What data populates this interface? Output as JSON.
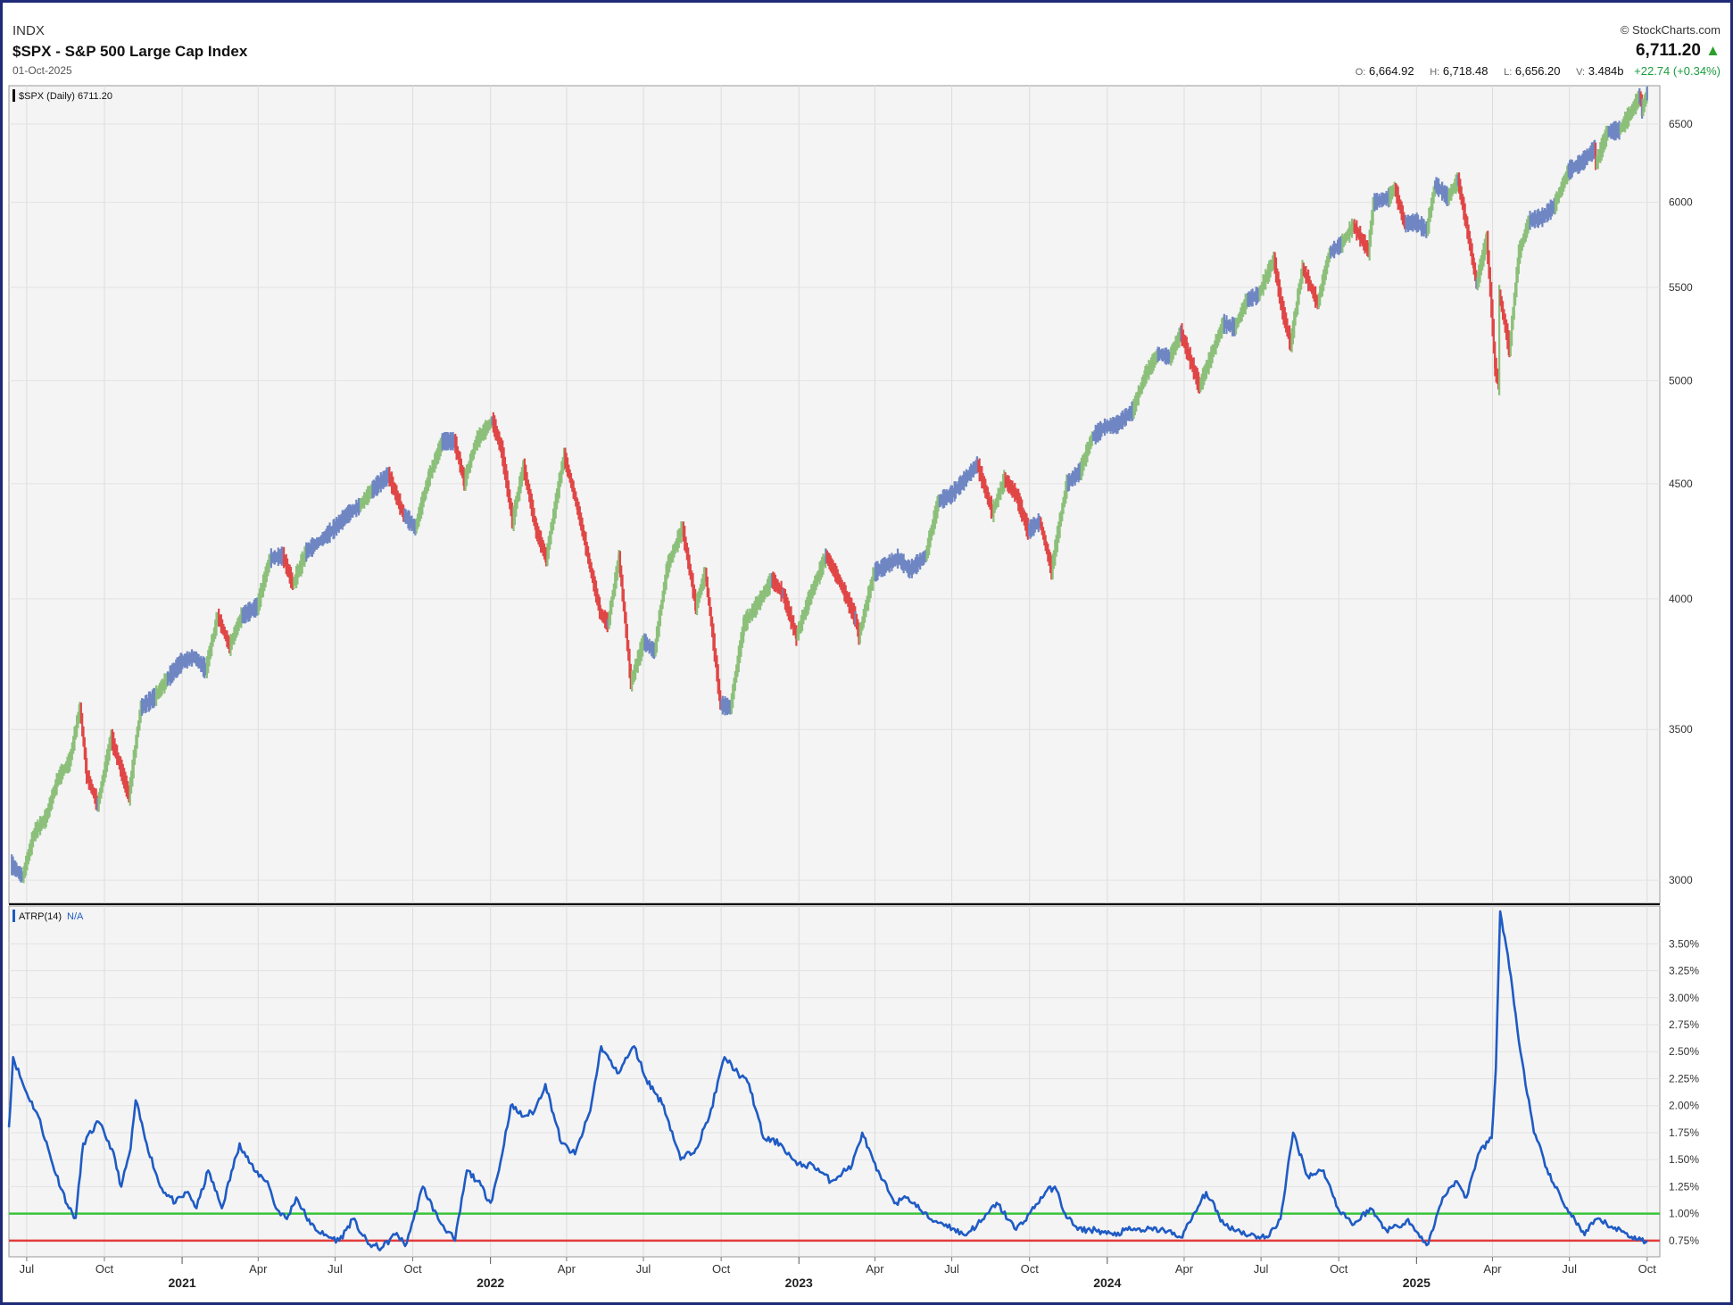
{
  "header": {
    "exchange": "INDX",
    "title": "$SPX - S&P 500 Large Cap Index",
    "date": "01-Oct-2025",
    "brand": "© StockCharts.com",
    "last": "6,711.20",
    "open_label": "O:",
    "open": "6,664.92",
    "high_label": "H:",
    "high": "6,718.48",
    "low_label": "L:",
    "low": "6,656.20",
    "volume_label": "V:",
    "volume": "3.484b",
    "change": "+22.74 (+0.34%)"
  },
  "colors": {
    "up": "#8cc07a",
    "down": "#e04646",
    "neutral": "#6f86c3",
    "atr_line": "#1f5bc4",
    "level_high": "#39c43a",
    "level_low": "#e33b3b",
    "frame": "#1f2a78",
    "panel_bg": "#f4f4f4"
  },
  "chart_data": [
    {
      "type": "line",
      "legend": "$SPX (Daily) 6711.20",
      "scale": "log",
      "ylim": [
        2930,
        6760
      ],
      "yticks": [
        3000,
        3500,
        4000,
        4500,
        5000,
        5500,
        6000,
        6500
      ],
      "x_range": [
        "2020-06-10",
        "2025-10-16"
      ],
      "month_ticks": [
        {
          "date": "2020-07-01",
          "label": "Jul"
        },
        {
          "date": "2020-10-01",
          "label": "Oct"
        },
        {
          "date": "2021-04-01",
          "label": "Apr"
        },
        {
          "date": "2021-07-01",
          "label": "Jul"
        },
        {
          "date": "2021-10-01",
          "label": "Oct"
        },
        {
          "date": "2022-04-01",
          "label": "Apr"
        },
        {
          "date": "2022-07-01",
          "label": "Jul"
        },
        {
          "date": "2022-10-01",
          "label": "Oct"
        },
        {
          "date": "2023-04-01",
          "label": "Apr"
        },
        {
          "date": "2023-07-01",
          "label": "Jul"
        },
        {
          "date": "2023-10-01",
          "label": "Oct"
        },
        {
          "date": "2024-04-01",
          "label": "Apr"
        },
        {
          "date": "2024-07-01",
          "label": "Jul"
        },
        {
          "date": "2024-10-01",
          "label": "Oct"
        },
        {
          "date": "2025-04-01",
          "label": "Apr"
        },
        {
          "date": "2025-07-01",
          "label": "Jul"
        },
        {
          "date": "2025-10-01",
          "label": "Oct"
        }
      ],
      "year_ticks": [
        {
          "date": "2021-01-01",
          "label": "2021"
        },
        {
          "date": "2022-01-01",
          "label": "2022"
        },
        {
          "date": "2023-01-01",
          "label": "2023"
        },
        {
          "date": "2024-01-01",
          "label": "2024"
        },
        {
          "date": "2025-01-01",
          "label": "2025"
        }
      ],
      "points": [
        [
          "2020-06-12",
          3050
        ],
        [
          "2020-06-26",
          3010
        ],
        [
          "2020-07-10",
          3150
        ],
        [
          "2020-07-24",
          3200
        ],
        [
          "2020-08-07",
          3330
        ],
        [
          "2020-08-21",
          3390
        ],
        [
          "2020-09-02",
          3580
        ],
        [
          "2020-09-10",
          3340
        ],
        [
          "2020-09-23",
          3240
        ],
        [
          "2020-10-09",
          3470
        ],
        [
          "2020-10-30",
          3270
        ],
        [
          "2020-11-13",
          3580
        ],
        [
          "2020-11-30",
          3620
        ],
        [
          "2020-12-15",
          3690
        ],
        [
          "2020-12-31",
          3750
        ],
        [
          "2021-01-15",
          3770
        ],
        [
          "2021-01-29",
          3720
        ],
        [
          "2021-02-12",
          3930
        ],
        [
          "2021-02-26",
          3810
        ],
        [
          "2021-03-12",
          3930
        ],
        [
          "2021-03-31",
          3970
        ],
        [
          "2021-04-15",
          4170
        ],
        [
          "2021-04-30",
          4180
        ],
        [
          "2021-05-12",
          4060
        ],
        [
          "2021-05-28",
          4200
        ],
        [
          "2021-06-15",
          4250
        ],
        [
          "2021-06-30",
          4300
        ],
        [
          "2021-07-15",
          4360
        ],
        [
          "2021-07-30",
          4400
        ],
        [
          "2021-08-13",
          4470
        ],
        [
          "2021-09-02",
          4540
        ],
        [
          "2021-09-20",
          4360
        ],
        [
          "2021-10-04",
          4300
        ],
        [
          "2021-10-20",
          4530
        ],
        [
          "2021-11-05",
          4700
        ],
        [
          "2021-11-19",
          4700
        ],
        [
          "2021-12-01",
          4510
        ],
        [
          "2021-12-15",
          4700
        ],
        [
          "2022-01-03",
          4800
        ],
        [
          "2022-01-14",
          4660
        ],
        [
          "2022-01-27",
          4330
        ],
        [
          "2022-02-09",
          4580
        ],
        [
          "2022-02-24",
          4290
        ],
        [
          "2022-03-08",
          4170
        ],
        [
          "2022-03-29",
          4630
        ],
        [
          "2022-04-14",
          4390
        ],
        [
          "2022-04-29",
          4130
        ],
        [
          "2022-05-11",
          3940
        ],
        [
          "2022-05-20",
          3900
        ],
        [
          "2022-06-02",
          4170
        ],
        [
          "2022-06-16",
          3670
        ],
        [
          "2022-07-01",
          3830
        ],
        [
          "2022-07-14",
          3790
        ],
        [
          "2022-07-29",
          4130
        ],
        [
          "2022-08-16",
          4300
        ],
        [
          "2022-09-01",
          3970
        ],
        [
          "2022-09-12",
          4110
        ],
        [
          "2022-09-30",
          3590
        ],
        [
          "2022-10-12",
          3580
        ],
        [
          "2022-10-28",
          3900
        ],
        [
          "2022-11-15",
          3990
        ],
        [
          "2022-11-30",
          4080
        ],
        [
          "2022-12-13",
          4020
        ],
        [
          "2022-12-29",
          3850
        ],
        [
          "2023-01-13",
          4000
        ],
        [
          "2023-02-02",
          4180
        ],
        [
          "2023-02-17",
          4080
        ],
        [
          "2023-03-09",
          3920
        ],
        [
          "2023-03-13",
          3850
        ],
        [
          "2023-03-31",
          4110
        ],
        [
          "2023-04-14",
          4140
        ],
        [
          "2023-04-28",
          4170
        ],
        [
          "2023-05-12",
          4120
        ],
        [
          "2023-05-31",
          4180
        ],
        [
          "2023-06-15",
          4420
        ],
        [
          "2023-06-30",
          4450
        ],
        [
          "2023-07-14",
          4510
        ],
        [
          "2023-07-31",
          4590
        ],
        [
          "2023-08-18",
          4370
        ],
        [
          "2023-09-01",
          4520
        ],
        [
          "2023-09-15",
          4450
        ],
        [
          "2023-09-29",
          4290
        ],
        [
          "2023-10-13",
          4330
        ],
        [
          "2023-10-27",
          4120
        ],
        [
          "2023-11-14",
          4500
        ],
        [
          "2023-11-30",
          4560
        ],
        [
          "2023-12-14",
          4720
        ],
        [
          "2023-12-29",
          4770
        ],
        [
          "2024-01-12",
          4780
        ],
        [
          "2024-01-31",
          4850
        ],
        [
          "2024-02-15",
          5030
        ],
        [
          "2024-03-01",
          5140
        ],
        [
          "2024-03-15",
          5120
        ],
        [
          "2024-03-28",
          5250
        ],
        [
          "2024-04-19",
          4970
        ],
        [
          "2024-05-03",
          5130
        ],
        [
          "2024-05-17",
          5300
        ],
        [
          "2024-05-31",
          5280
        ],
        [
          "2024-06-14",
          5430
        ],
        [
          "2024-06-28",
          5460
        ],
        [
          "2024-07-16",
          5660
        ],
        [
          "2024-07-25",
          5400
        ],
        [
          "2024-08-05",
          5190
        ],
        [
          "2024-08-19",
          5610
        ],
        [
          "2024-09-06",
          5410
        ],
        [
          "2024-09-20",
          5700
        ],
        [
          "2024-10-04",
          5750
        ],
        [
          "2024-10-18",
          5860
        ],
        [
          "2024-11-05",
          5710
        ],
        [
          "2024-11-11",
          6000
        ],
        [
          "2024-11-29",
          6030
        ],
        [
          "2024-12-06",
          6090
        ],
        [
          "2024-12-18",
          5870
        ],
        [
          "2024-12-31",
          5880
        ],
        [
          "2025-01-13",
          5830
        ],
        [
          "2025-01-23",
          6110
        ],
        [
          "2025-02-07",
          6030
        ],
        [
          "2025-02-19",
          6140
        ],
        [
          "2025-03-10",
          5610
        ],
        [
          "2025-03-13",
          5520
        ],
        [
          "2025-03-25",
          5780
        ],
        [
          "2025-04-04",
          5070
        ],
        [
          "2025-04-08",
          4980
        ],
        [
          "2025-04-09",
          5460
        ],
        [
          "2025-04-21",
          5160
        ],
        [
          "2025-05-02",
          5690
        ],
        [
          "2025-05-14",
          5890
        ],
        [
          "2025-05-30",
          5910
        ],
        [
          "2025-06-13",
          5980
        ],
        [
          "2025-06-30",
          6200
        ],
        [
          "2025-07-15",
          6250
        ],
        [
          "2025-07-31",
          6340
        ],
        [
          "2025-08-01",
          6240
        ],
        [
          "2025-08-15",
          6450
        ],
        [
          "2025-08-29",
          6460
        ],
        [
          "2025-09-12",
          6580
        ],
        [
          "2025-09-22",
          6690
        ],
        [
          "2025-09-25",
          6600
        ],
        [
          "2025-10-01",
          6711.2
        ]
      ]
    },
    {
      "type": "line",
      "legend_name": "ATRP(14)",
      "legend_value": "N/A",
      "ylim": [
        0.6,
        3.85
      ],
      "yticks": [
        0.75,
        1.0,
        1.25,
        1.5,
        1.75,
        2.0,
        2.25,
        2.5,
        2.75,
        3.0,
        3.25,
        3.5
      ],
      "ytick_labels": [
        "0.75%",
        "1.00%",
        "1.25%",
        "1.50%",
        "1.75%",
        "2.00%",
        "2.25%",
        "2.50%",
        "2.75%",
        "3.00%",
        "3.25%",
        "3.50%"
      ],
      "levels": [
        1.0,
        0.75
      ],
      "points": [
        [
          "2020-06-10",
          1.8
        ],
        [
          "2020-06-15",
          2.45
        ],
        [
          "2020-06-29",
          2.15
        ],
        [
          "2020-07-15",
          1.9
        ],
        [
          "2020-08-01",
          1.45
        ],
        [
          "2020-08-20",
          1.05
        ],
        [
          "2020-08-28",
          0.96
        ],
        [
          "2020-09-06",
          1.65
        ],
        [
          "2020-09-24",
          1.85
        ],
        [
          "2020-10-10",
          1.6
        ],
        [
          "2020-10-21",
          1.25
        ],
        [
          "2020-11-01",
          1.6
        ],
        [
          "2020-11-07",
          2.05
        ],
        [
          "2020-11-20",
          1.65
        ],
        [
          "2020-12-06",
          1.25
        ],
        [
          "2020-12-24",
          1.1
        ],
        [
          "2021-01-08",
          1.2
        ],
        [
          "2021-01-18",
          1.05
        ],
        [
          "2021-02-01",
          1.4
        ],
        [
          "2021-02-17",
          1.05
        ],
        [
          "2021-03-10",
          1.65
        ],
        [
          "2021-03-27",
          1.4
        ],
        [
          "2021-04-12",
          1.3
        ],
        [
          "2021-04-22",
          1.05
        ],
        [
          "2021-05-05",
          0.95
        ],
        [
          "2021-05-16",
          1.15
        ],
        [
          "2021-06-02",
          0.9
        ],
        [
          "2021-06-18",
          0.8
        ],
        [
          "2021-07-06",
          0.75
        ],
        [
          "2021-07-22",
          0.95
        ],
        [
          "2021-08-09",
          0.72
        ],
        [
          "2021-08-25",
          0.68
        ],
        [
          "2021-09-12",
          0.82
        ],
        [
          "2021-09-22",
          0.7
        ],
        [
          "2021-10-02",
          0.95
        ],
        [
          "2021-10-13",
          1.25
        ],
        [
          "2021-10-31",
          0.95
        ],
        [
          "2021-11-20",
          0.75
        ],
        [
          "2021-12-04",
          1.4
        ],
        [
          "2021-12-17",
          1.3
        ],
        [
          "2022-01-01",
          1.1
        ],
        [
          "2022-01-11",
          1.4
        ],
        [
          "2022-01-25",
          2.0
        ],
        [
          "2022-02-09",
          1.9
        ],
        [
          "2022-02-22",
          1.95
        ],
        [
          "2022-03-07",
          2.2
        ],
        [
          "2022-03-26",
          1.65
        ],
        [
          "2022-04-11",
          1.55
        ],
        [
          "2022-04-29",
          1.95
        ],
        [
          "2022-05-12",
          2.55
        ],
        [
          "2022-05-31",
          2.3
        ],
        [
          "2022-06-20",
          2.55
        ],
        [
          "2022-07-04",
          2.25
        ],
        [
          "2022-07-25",
          2.0
        ],
        [
          "2022-08-14",
          1.5
        ],
        [
          "2022-09-01",
          1.6
        ],
        [
          "2022-09-17",
          1.9
        ],
        [
          "2022-10-05",
          2.45
        ],
        [
          "2022-10-21",
          2.3
        ],
        [
          "2022-11-03",
          2.2
        ],
        [
          "2022-11-20",
          1.7
        ],
        [
          "2022-12-10",
          1.65
        ],
        [
          "2022-12-30",
          1.45
        ],
        [
          "2023-01-18",
          1.45
        ],
        [
          "2023-02-08",
          1.3
        ],
        [
          "2023-03-05",
          1.45
        ],
        [
          "2023-03-17",
          1.75
        ],
        [
          "2023-04-03",
          1.4
        ],
        [
          "2023-04-26",
          1.1
        ],
        [
          "2023-05-10",
          1.15
        ],
        [
          "2023-06-05",
          0.95
        ],
        [
          "2023-06-24",
          0.9
        ],
        [
          "2023-07-16",
          0.8
        ],
        [
          "2023-08-08",
          0.95
        ],
        [
          "2023-08-23",
          1.1
        ],
        [
          "2023-09-15",
          0.85
        ],
        [
          "2023-10-01",
          1.0
        ],
        [
          "2023-10-20",
          1.2
        ],
        [
          "2023-10-31",
          1.25
        ],
        [
          "2023-11-12",
          1.0
        ],
        [
          "2023-11-27",
          0.85
        ],
        [
          "2023-12-18",
          0.85
        ],
        [
          "2024-01-08",
          0.8
        ],
        [
          "2024-01-25",
          0.85
        ],
        [
          "2024-02-16",
          0.85
        ],
        [
          "2024-03-08",
          0.85
        ],
        [
          "2024-03-28",
          0.78
        ],
        [
          "2024-04-10",
          0.95
        ],
        [
          "2024-04-27",
          1.2
        ],
        [
          "2024-05-18",
          0.9
        ],
        [
          "2024-06-18",
          0.8
        ],
        [
          "2024-07-09",
          0.78
        ],
        [
          "2024-07-24",
          0.95
        ],
        [
          "2024-08-08",
          1.75
        ],
        [
          "2024-08-25",
          1.35
        ],
        [
          "2024-09-13",
          1.4
        ],
        [
          "2024-09-30",
          1.05
        ],
        [
          "2024-10-19",
          0.9
        ],
        [
          "2024-11-07",
          1.05
        ],
        [
          "2024-11-26",
          0.85
        ],
        [
          "2024-12-10",
          0.88
        ],
        [
          "2024-12-22",
          0.95
        ],
        [
          "2025-01-05",
          0.78
        ],
        [
          "2025-01-15",
          0.72
        ],
        [
          "2025-02-01",
          1.15
        ],
        [
          "2025-02-16",
          1.3
        ],
        [
          "2025-03-01",
          1.15
        ],
        [
          "2025-03-15",
          1.55
        ],
        [
          "2025-03-31",
          1.7
        ],
        [
          "2025-04-05",
          2.35
        ],
        [
          "2025-04-10",
          3.8
        ],
        [
          "2025-04-19",
          3.4
        ],
        [
          "2025-05-04",
          2.5
        ],
        [
          "2025-05-20",
          1.75
        ],
        [
          "2025-06-10",
          1.3
        ],
        [
          "2025-06-28",
          1.05
        ],
        [
          "2025-07-19",
          0.8
        ],
        [
          "2025-08-02",
          0.95
        ],
        [
          "2025-08-20",
          0.88
        ],
        [
          "2025-09-05",
          0.82
        ],
        [
          "2025-09-20",
          0.76
        ],
        [
          "2025-10-01",
          0.75
        ]
      ]
    }
  ]
}
